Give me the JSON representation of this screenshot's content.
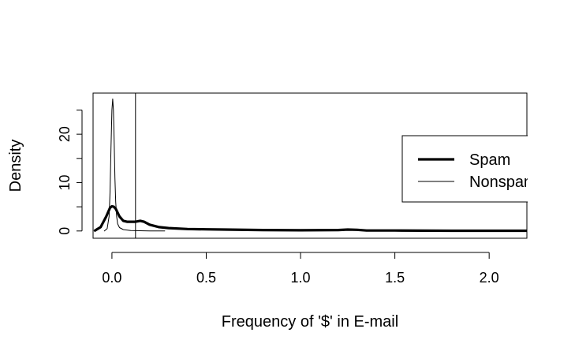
{
  "chart_data": {
    "type": "line",
    "title": "",
    "xlabel": "Frequency of '$' in E-mail",
    "ylabel": "Density",
    "xlim": [
      -0.1,
      2.2
    ],
    "ylim": [
      -1.5,
      28.5
    ],
    "x_ticks": [
      0.0,
      0.5,
      1.0,
      1.5,
      2.0
    ],
    "x_tick_labels": [
      "0.0",
      "0.5",
      "1.0",
      "1.5",
      "2.0"
    ],
    "y_ticks": [
      0,
      10,
      20
    ],
    "y_tick_labels": [
      "0",
      "10",
      "20"
    ],
    "y_minor_ticks": [
      5,
      15,
      25
    ],
    "vline": 0.125,
    "legend": {
      "position": "right",
      "entries": [
        {
          "label": "Spam",
          "series": "spam"
        },
        {
          "label": "Nonspam",
          "series": "nonspam"
        }
      ]
    },
    "series": [
      {
        "name": "Spam",
        "key": "spam",
        "style": "thick",
        "x": [
          -0.09,
          -0.06,
          -0.03,
          -0.01,
          0.0,
          0.01,
          0.02,
          0.04,
          0.06,
          0.08,
          0.1,
          0.125,
          0.15,
          0.17,
          0.2,
          0.25,
          0.3,
          0.4,
          0.5,
          0.6,
          0.8,
          1.0,
          1.2,
          1.25,
          1.3,
          1.35,
          1.5,
          1.8,
          2.0,
          2.2
        ],
        "y": [
          0.1,
          0.8,
          3.0,
          4.8,
          5.1,
          5.0,
          4.6,
          3.0,
          2.1,
          1.9,
          1.9,
          1.9,
          2.1,
          1.9,
          1.3,
          0.8,
          0.6,
          0.4,
          0.35,
          0.3,
          0.2,
          0.15,
          0.2,
          0.3,
          0.25,
          0.1,
          0.1,
          0.05,
          0.05,
          0.05
        ]
      },
      {
        "name": "Nonspam",
        "key": "nonspam",
        "style": "thin",
        "x": [
          -0.04,
          -0.025,
          -0.015,
          -0.01,
          -0.005,
          0.0,
          0.004,
          0.008,
          0.012,
          0.016,
          0.02,
          0.025,
          0.03,
          0.04,
          0.06,
          0.1,
          0.15,
          0.2,
          0.28
        ],
        "y": [
          0.0,
          0.5,
          3.0,
          8.0,
          17.0,
          25.0,
          27.3,
          25.0,
          18.0,
          11.0,
          6.0,
          3.0,
          1.5,
          0.7,
          0.3,
          0.1,
          0.05,
          0.02,
          0.0
        ]
      }
    ]
  }
}
